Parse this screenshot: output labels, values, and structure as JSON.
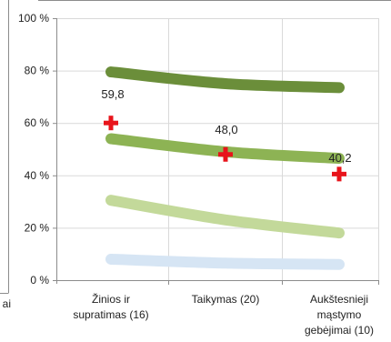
{
  "chart_data": {
    "type": "line",
    "categories": [
      "Žinios ir supratimas (16)",
      "Taikymas (20)",
      "Aukštesnieji mąstymo gebėjimai (10)"
    ],
    "category_label_lines": [
      [
        "Žinios ir",
        "supratimas (16)"
      ],
      [
        "Taikymas (20)"
      ],
      [
        "Aukštesnieji",
        "mąstymo",
        "gebėjimai (10)"
      ]
    ],
    "left_edge_text": [
      "ai"
    ],
    "y_ticks": [
      "0 %",
      "20 %",
      "40 %",
      "60 %",
      "80 %",
      "100 %"
    ],
    "ylim": [
      0,
      100
    ],
    "grid": true,
    "series": [
      {
        "values": [
          79.5,
          75,
          73.5
        ],
        "color": "#6b8e3a"
      },
      {
        "values": [
          54,
          49,
          46.5
        ],
        "color": "#8db354"
      },
      {
        "values": [
          30.5,
          23,
          18
        ],
        "color": "#c3d99a"
      },
      {
        "values": [
          8,
          6.5,
          6
        ],
        "color": "#d6e5f4"
      }
    ],
    "markers": {
      "values": [
        60,
        48,
        40.5
      ],
      "labels": [
        "59,8",
        "48,0",
        "40,2"
      ],
      "color": "#e8141b"
    }
  }
}
